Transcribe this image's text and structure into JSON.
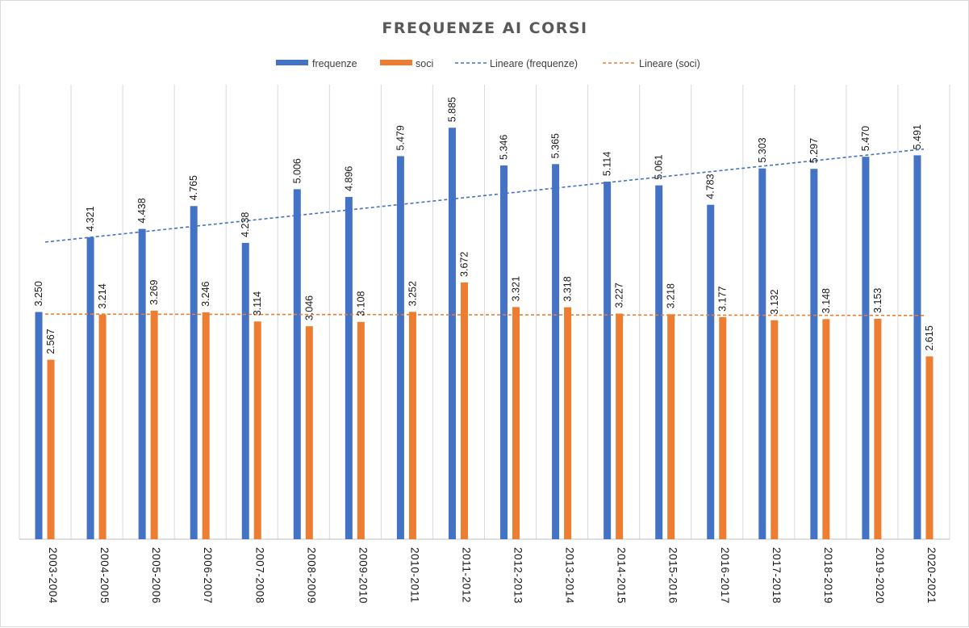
{
  "chart_data": {
    "type": "bar",
    "title": "FREQUENZE AI CORSI",
    "xlabel": "",
    "ylabel": "",
    "ylim": [
      0,
      6500
    ],
    "grid": {
      "vertical": true,
      "horizontal": false
    },
    "legend": {
      "placement": "top"
    },
    "categories": [
      "2003-2004",
      "2004-2005",
      "2005-2006",
      "2006-2007",
      "2007-2008",
      "2008-2009",
      "2009-2010",
      "2010-2011",
      "2011-2012",
      "2012-2013",
      "2013-2014",
      "2014-2015",
      "2015-2016",
      "2016-2017",
      "2017-2018",
      "2018-2019",
      "2019-2020",
      "2020-2021"
    ],
    "series": [
      {
        "name": "frequenze",
        "color": "#4472c4",
        "values": [
          3250,
          4321,
          4438,
          4765,
          4238,
          5006,
          4896,
          5479,
          5885,
          5346,
          5365,
          5114,
          5061,
          4783,
          5303,
          5297,
          5470,
          5491
        ],
        "labels": [
          "3.250",
          "4.321",
          "4.438",
          "4.765",
          "4.238",
          "5.006",
          "4.896",
          "5.479",
          "5.885",
          "5.346",
          "5.365",
          "5.114",
          "5.061",
          "4.783",
          "5.303",
          "5.297",
          "5.470",
          "5.491"
        ]
      },
      {
        "name": "soci",
        "color": "#ed7d31",
        "values": [
          2567,
          3214,
          3269,
          3246,
          3114,
          3046,
          3108,
          3252,
          3672,
          3321,
          3318,
          3227,
          3218,
          3177,
          3132,
          3148,
          3153,
          2615
        ],
        "labels": [
          "2.567",
          "3.214",
          "3.269",
          "3.246",
          "3.114",
          "3.046",
          "3.108",
          "3.252",
          "3.672",
          "3.321",
          "3.318",
          "3.227",
          "3.218",
          "3.177",
          "3.132",
          "3.148",
          "3.153",
          "2.615"
        ]
      }
    ],
    "trendlines": [
      {
        "name": "Lineare (frequenze)",
        "color": "#4472c4",
        "start": 4250,
        "end": 5580
      },
      {
        "name": "Lineare (soci)",
        "color": "#ed7d31",
        "start": 3220,
        "end": 3200
      }
    ]
  }
}
